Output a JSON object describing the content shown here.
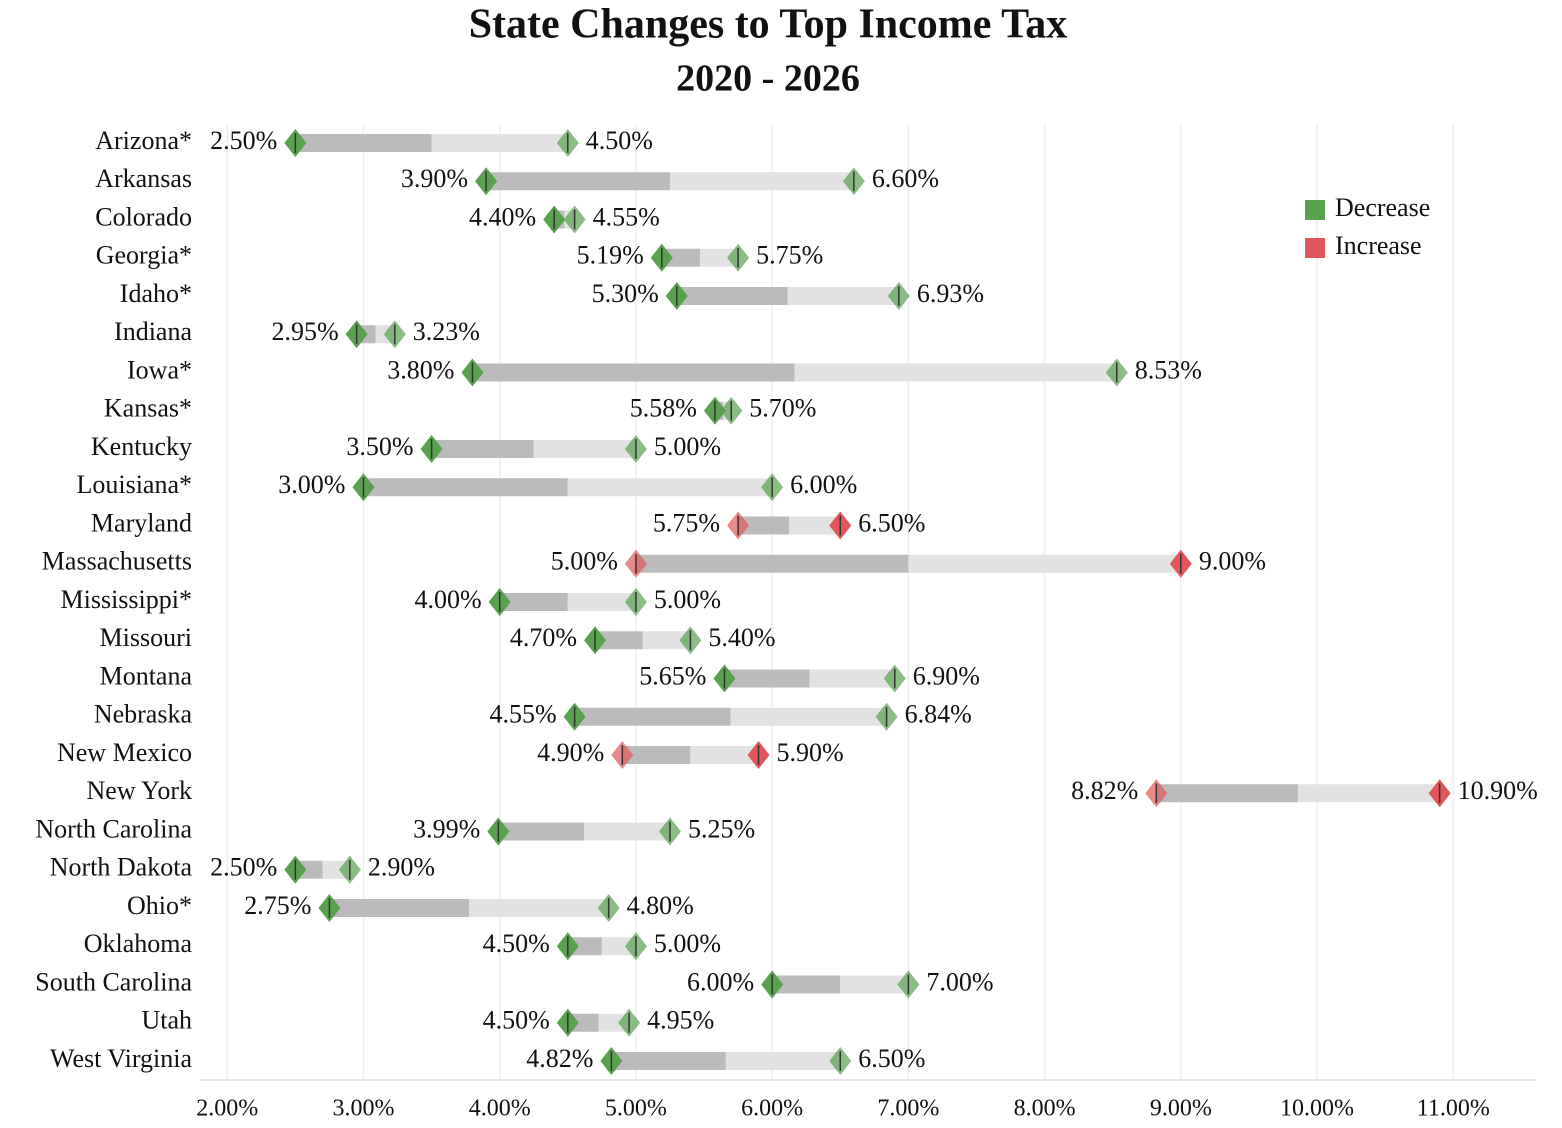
{
  "chart_data": {
    "type": "dumbbell",
    "title": "State Changes to Top Income Tax",
    "subtitle": "2020 - 2026",
    "categories": [
      "Arizona*",
      "Arkansas",
      "Colorado",
      "Georgia*",
      "Idaho*",
      "Indiana",
      "Iowa*",
      "Kansas*",
      "Kentucky",
      "Louisiana*",
      "Maryland",
      "Massachusetts",
      "Mississippi*",
      "Missouri",
      "Montana",
      "Nebraska",
      "New Mexico",
      "New York",
      "North Carolina",
      "North Dakota",
      "Ohio*",
      "Oklahoma",
      "South Carolina",
      "Utah",
      "West Virginia"
    ],
    "from_values": [
      4.5,
      6.6,
      4.55,
      5.75,
      6.93,
      3.23,
      8.53,
      5.7,
      5.0,
      6.0,
      5.75,
      5.0,
      5.0,
      5.4,
      6.9,
      6.84,
      4.9,
      8.82,
      5.25,
      2.9,
      4.8,
      5.0,
      7.0,
      4.95,
      6.5
    ],
    "from_labels": [
      "4.50%",
      "6.60%",
      "4.55%",
      "5.75%",
      "6.93%",
      "3.23%",
      "8.53%",
      "5.70%",
      "5.00%",
      "6.00%",
      "5.75%",
      "5.00%",
      "5.00%",
      "5.40%",
      "6.90%",
      "6.84%",
      "4.90%",
      "8.82%",
      "5.25%",
      "2.90%",
      "4.80%",
      "5.00%",
      "7.00%",
      "4.95%",
      "6.50%"
    ],
    "to_values": [
      2.5,
      3.9,
      4.4,
      5.19,
      5.3,
      2.95,
      3.8,
      5.58,
      3.5,
      3.0,
      6.5,
      9.0,
      4.0,
      4.7,
      5.65,
      4.55,
      5.9,
      10.9,
      3.99,
      2.5,
      2.75,
      4.5,
      6.0,
      4.5,
      4.82
    ],
    "to_labels": [
      "2.50%",
      "3.90%",
      "4.40%",
      "5.19%",
      "5.30%",
      "2.95%",
      "3.80%",
      "5.58%",
      "3.50%",
      "3.00%",
      "6.50%",
      "9.00%",
      "4.00%",
      "4.70%",
      "5.65%",
      "4.55%",
      "5.90%",
      "10.90%",
      "3.99%",
      "2.50%",
      "2.75%",
      "4.50%",
      "6.00%",
      "4.50%",
      "4.82%"
    ],
    "change": [
      "Decrease",
      "Decrease",
      "Decrease",
      "Decrease",
      "Decrease",
      "Decrease",
      "Decrease",
      "Decrease",
      "Decrease",
      "Decrease",
      "Increase",
      "Increase",
      "Decrease",
      "Decrease",
      "Decrease",
      "Decrease",
      "Increase",
      "Increase",
      "Decrease",
      "Decrease",
      "Decrease",
      "Decrease",
      "Decrease",
      "Decrease",
      "Decrease"
    ],
    "legend": [
      {
        "name": "Decrease",
        "color": "#59a14f"
      },
      {
        "name": "Increase",
        "color": "#e15759"
      }
    ],
    "legend_position": "top-right",
    "xlim": [
      1.8,
      11.6
    ],
    "xticks": [
      {
        "value": 2,
        "label": "2.00%"
      },
      {
        "value": 3,
        "label": "3.00%"
      },
      {
        "value": 4,
        "label": "4.00%"
      },
      {
        "value": 5,
        "label": "5.00%"
      },
      {
        "value": 6,
        "label": "6.00%"
      },
      {
        "value": 7,
        "label": "7.00%"
      },
      {
        "value": 8,
        "label": "8.00%"
      },
      {
        "value": 9,
        "label": "9.00%"
      },
      {
        "value": 10,
        "label": "10.00%"
      },
      {
        "value": 11,
        "label": "11.00%"
      }
    ],
    "grid": true
  }
}
